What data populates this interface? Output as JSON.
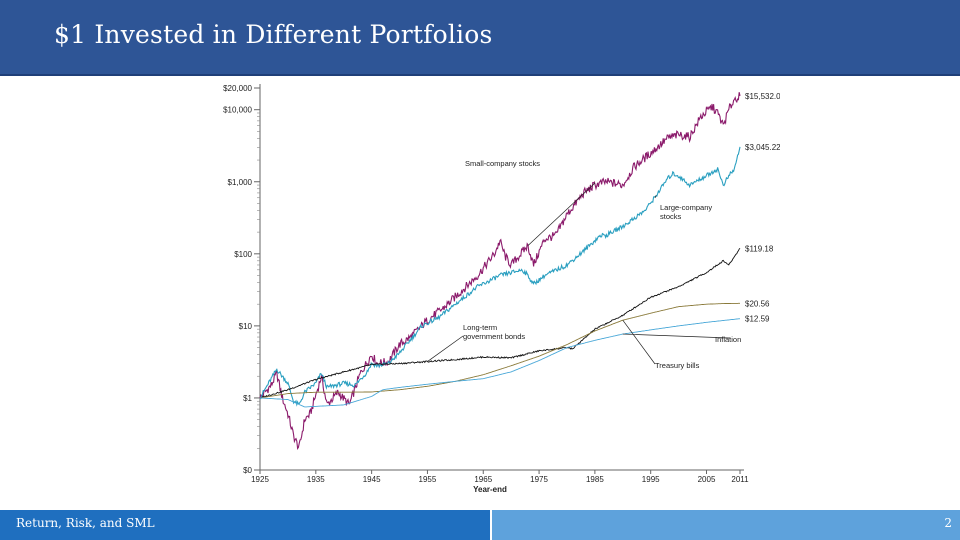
{
  "slide": {
    "title": "$1 Invested in Different Portfolios",
    "footer_text": "Return, Risk, and SML",
    "page_number": "2",
    "colors": {
      "header": "#2e5596",
      "footer_left": "#1f6fbf",
      "footer_right": "#5ea2dc"
    }
  },
  "chart_data": {
    "type": "line",
    "y_scale": "log",
    "ylim": [
      0.1,
      20000
    ],
    "xlim": [
      1925,
      2011
    ],
    "xlabel": "Year-end",
    "ylabel": "",
    "y_ticks": [
      {
        "value": 0.1,
        "label": "$0"
      },
      {
        "value": 1,
        "label": "$1"
      },
      {
        "value": 10,
        "label": "$10"
      },
      {
        "value": 100,
        "label": "$100"
      },
      {
        "value": 1000,
        "label": "$1,000"
      },
      {
        "value": 10000,
        "label": "$10,000"
      },
      {
        "value": 20000,
        "label": "$20,000"
      }
    ],
    "x_ticks": [
      1925,
      1935,
      1945,
      1955,
      1965,
      1975,
      1985,
      1995,
      2005,
      2011
    ],
    "grid": false,
    "series": [
      {
        "name": "Small-company stocks",
        "color": "#8b1a6b",
        "end_label": "$15,532.07",
        "x": [
          1925,
          1927,
          1928,
          1929,
          1930,
          1931,
          1932,
          1933,
          1934,
          1936,
          1937,
          1939,
          1941,
          1943,
          1945,
          1946,
          1948,
          1950,
          1952,
          1955,
          1958,
          1961,
          1964,
          1967,
          1968,
          1969,
          1970,
          1973,
          1974,
          1976,
          1978,
          1980,
          1983,
          1985,
          1987,
          1990,
          1992,
          1995,
          1998,
          2000,
          2002,
          2004,
          2006,
          2007,
          2008,
          2009,
          2010,
          2011
        ],
        "values": [
          1,
          1.5,
          2.2,
          1.0,
          0.6,
          0.3,
          0.2,
          0.5,
          0.6,
          2.0,
          0.8,
          1.2,
          0.8,
          2.2,
          4.0,
          3.0,
          3.2,
          5.5,
          7,
          12,
          18,
          30,
          50,
          100,
          150,
          90,
          70,
          130,
          70,
          160,
          180,
          350,
          700,
          900,
          1000,
          900,
          1600,
          2500,
          4000,
          4500,
          4200,
          8000,
          11000,
          9000,
          6000,
          10000,
          14000,
          15532.07
        ]
      },
      {
        "name": "Large-company stocks",
        "color": "#2a9fc0",
        "end_label": "$3,045.22",
        "x": [
          1925,
          1928,
          1929,
          1930,
          1931,
          1932,
          1933,
          1935,
          1936,
          1937,
          1940,
          1942,
          1944,
          1945,
          1946,
          1948,
          1950,
          1954,
          1957,
          1960,
          1964,
          1968,
          1972,
          1973,
          1974,
          1976,
          1980,
          1983,
          1986,
          1987,
          1990,
          1994,
          1996,
          1998,
          1999,
          2000,
          2002,
          2004,
          2007,
          2008,
          2009,
          2010,
          2011
        ],
        "values": [
          1,
          2.5,
          2.0,
          1.6,
          0.9,
          0.8,
          1.2,
          1.6,
          2.2,
          1.4,
          1.6,
          1.5,
          2.2,
          3.0,
          2.8,
          3.0,
          4.2,
          10,
          13,
          20,
          35,
          50,
          60,
          50,
          38,
          50,
          70,
          110,
          180,
          180,
          240,
          400,
          650,
          1100,
          1300,
          1200,
          900,
          1100,
          1500,
          900,
          1200,
          1500,
          3045.22
        ]
      },
      {
        "name": "Long-term government bonds",
        "color": "#111111",
        "end_label": "$119.18",
        "x": [
          1925,
          1930,
          1935,
          1940,
          1945,
          1950,
          1955,
          1960,
          1965,
          1970,
          1975,
          1980,
          1981,
          1985,
          1990,
          1995,
          2000,
          2005,
          2008,
          2009,
          2011
        ],
        "values": [
          1,
          1.3,
          1.8,
          2.3,
          2.9,
          3.0,
          3.2,
          3.4,
          3.7,
          3.6,
          4.5,
          5.0,
          4.8,
          9,
          14,
          25,
          35,
          55,
          80,
          70,
          119.18
        ]
      },
      {
        "name": "Treasury bills",
        "color": "#8a7a3a",
        "end_label": "$20.56",
        "x": [
          1925,
          1930,
          1935,
          1940,
          1945,
          1950,
          1955,
          1960,
          1965,
          1970,
          1975,
          1980,
          1985,
          1990,
          1995,
          2000,
          2005,
          2008,
          2011
        ],
        "values": [
          1,
          1.15,
          1.2,
          1.2,
          1.21,
          1.3,
          1.45,
          1.7,
          2.1,
          2.8,
          3.8,
          5.5,
          8.5,
          12,
          15,
          18.5,
          20,
          20.4,
          20.56
        ]
      },
      {
        "name": "Inflation",
        "color": "#4aa8d8",
        "end_label": "$12.59",
        "x": [
          1925,
          1930,
          1933,
          1940,
          1945,
          1947,
          1950,
          1955,
          1960,
          1965,
          1970,
          1975,
          1980,
          1985,
          1990,
          1995,
          2000,
          2005,
          2011
        ],
        "values": [
          1,
          0.95,
          0.75,
          0.8,
          1.05,
          1.3,
          1.4,
          1.55,
          1.7,
          1.85,
          2.3,
          3.3,
          5.0,
          6.3,
          7.7,
          8.8,
          10.0,
          11.2,
          12.59
        ]
      }
    ],
    "annotations": [
      {
        "text": "Small-company stocks",
        "series": "Small-company stocks"
      },
      {
        "text": "Large-company\nstocks",
        "series": "Large-company stocks"
      },
      {
        "text": "Long-term\ngovernment bonds",
        "series": "Long-term government bonds"
      },
      {
        "text": "Inflation",
        "series": "Inflation"
      },
      {
        "text": "Treasury bills",
        "series": "Treasury bills"
      }
    ]
  }
}
